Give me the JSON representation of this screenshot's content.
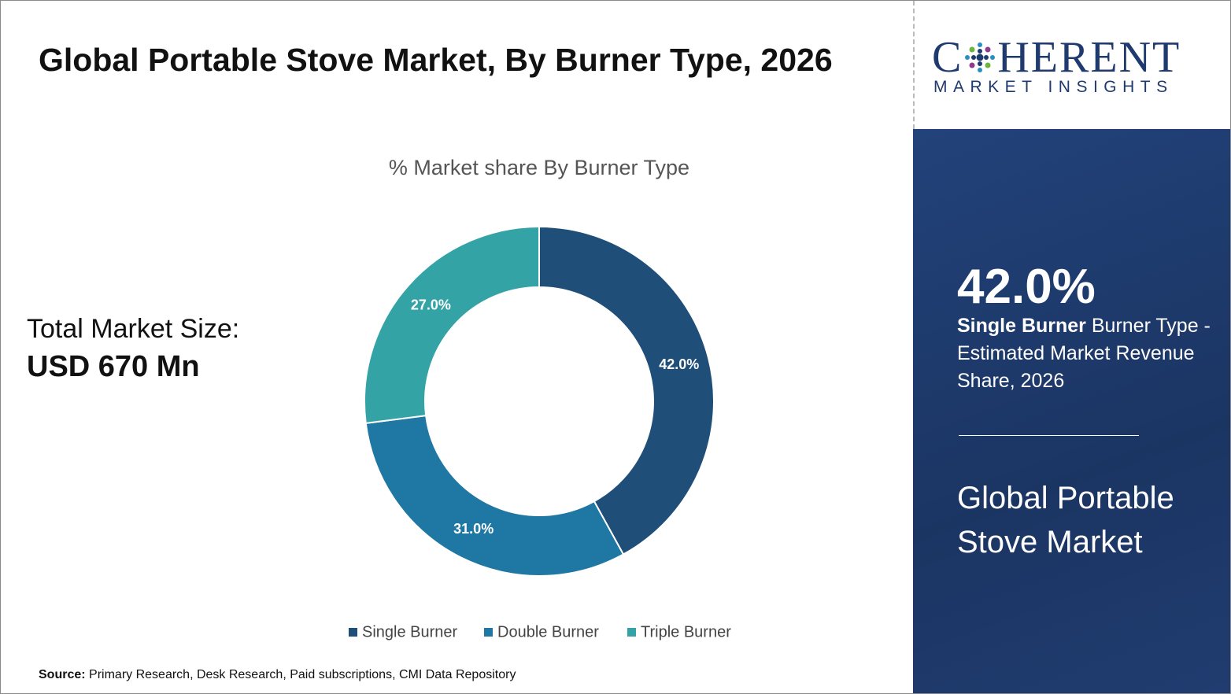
{
  "header": {
    "title": "Global Portable Stove Market, By Burner Type, 2026"
  },
  "market_size": {
    "label": "Total Market Size:",
    "value": "USD 670 Mn"
  },
  "logo": {
    "name_start": "C",
    "name_end": "HERENT",
    "tagline": "MARKET INSIGHTS"
  },
  "panel": {
    "highlight": "42.0%",
    "segment": "Single Burner",
    "description": "Burner Type - Estimated Market Revenue Share, 2026",
    "market": "Global Portable Stove Market"
  },
  "source": {
    "label": "Source:",
    "text": "Primary Research, Desk Research, Paid subscriptions, CMI Data Repository"
  },
  "chart_data": {
    "type": "donut",
    "title": "% Market share By Burner Type",
    "categories": [
      "Single Burner",
      "Double Burner",
      "Triple Burner"
    ],
    "values": [
      42,
      31,
      27
    ],
    "value_labels": [
      "42.0%",
      "31.0%",
      "27.0%"
    ],
    "colors": [
      "#1f4e79",
      "#1f77a4",
      "#34a3a5"
    ],
    "legend": "bottom"
  }
}
